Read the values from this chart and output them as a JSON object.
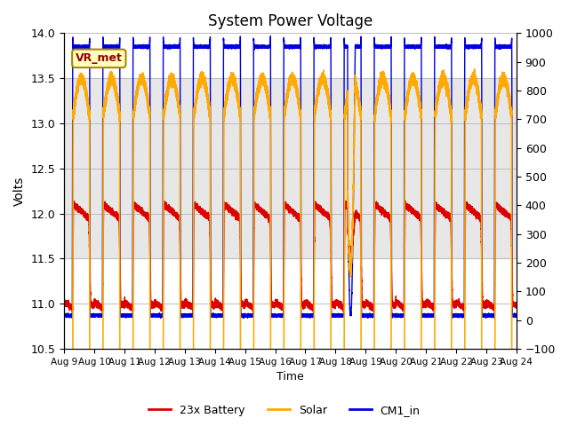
{
  "title": "System Power Voltage",
  "xlabel": "Time",
  "ylabel": "Volts",
  "ylim_left": [
    10.5,
    14.0
  ],
  "ylim_right": [
    -100,
    1000
  ],
  "yticks_left": [
    10.5,
    11.0,
    11.5,
    12.0,
    12.5,
    13.0,
    13.5,
    14.0
  ],
  "yticks_right": [
    -100,
    0,
    100,
    200,
    300,
    400,
    500,
    600,
    700,
    800,
    900,
    1000
  ],
  "xtick_labels": [
    "Aug 9",
    "Aug 10",
    "Aug 11",
    "Aug 12",
    "Aug 13",
    "Aug 14",
    "Aug 15",
    "Aug 16",
    "Aug 17",
    "Aug 18",
    "Aug 19",
    "Aug 20",
    "Aug 21",
    "Aug 22",
    "Aug 23",
    "Aug 24"
  ],
  "shaded_band": [
    11.5,
    13.5
  ],
  "legend_entries": [
    "23x Battery",
    "Solar",
    "CM1_in"
  ],
  "legend_colors": [
    "#dd0000",
    "#ffaa00",
    "#0000dd"
  ],
  "vr_met_label": "VR_met",
  "background_color": "#ffffff",
  "grid_color": "#bbbbbb",
  "n_days": 15,
  "pts_per_day": 1440
}
